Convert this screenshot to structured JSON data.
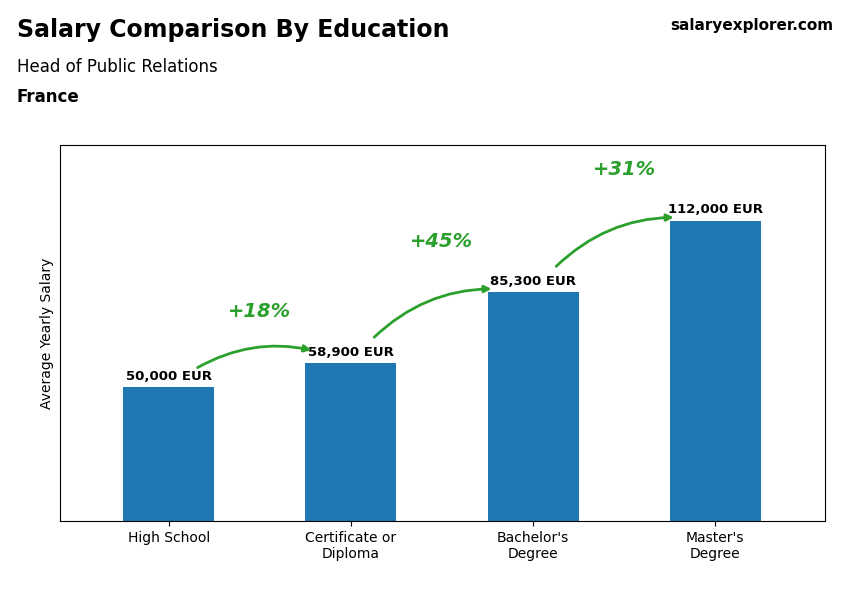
{
  "chart_data": {
    "type": "bar",
    "title": "Salary Comparison By Education",
    "subtitle": "Head of Public Relations",
    "source": "salaryexplorer.com",
    "ylabel": "Average Yearly Salary",
    "categories": [
      "High School",
      "Certificate or\nDiploma",
      "Bachelor's\nDegree",
      "Master's\nDegree"
    ],
    "values": [
      50000,
      58900,
      85300,
      112000
    ],
    "value_labels": [
      "50,000 EUR",
      "58,900 EUR",
      "85,300 EUR",
      "112,000 EUR"
    ],
    "data_labels": true,
    "ylim": [
      0,
      140000
    ],
    "yticks": [],
    "tick_labels": "x",
    "grid": false,
    "annotations": [
      {
        "text": "France"
      },
      {
        "text": "+18%",
        "from": "High School",
        "to": "Certificate or\nDiploma"
      },
      {
        "text": "+45%",
        "from": "Certificate or\nDiploma",
        "to": "Bachelor's\nDegree"
      },
      {
        "text": "+31%",
        "from": "Bachelor's\nDegree",
        "to": "Master's\nDegree"
      }
    ]
  }
}
